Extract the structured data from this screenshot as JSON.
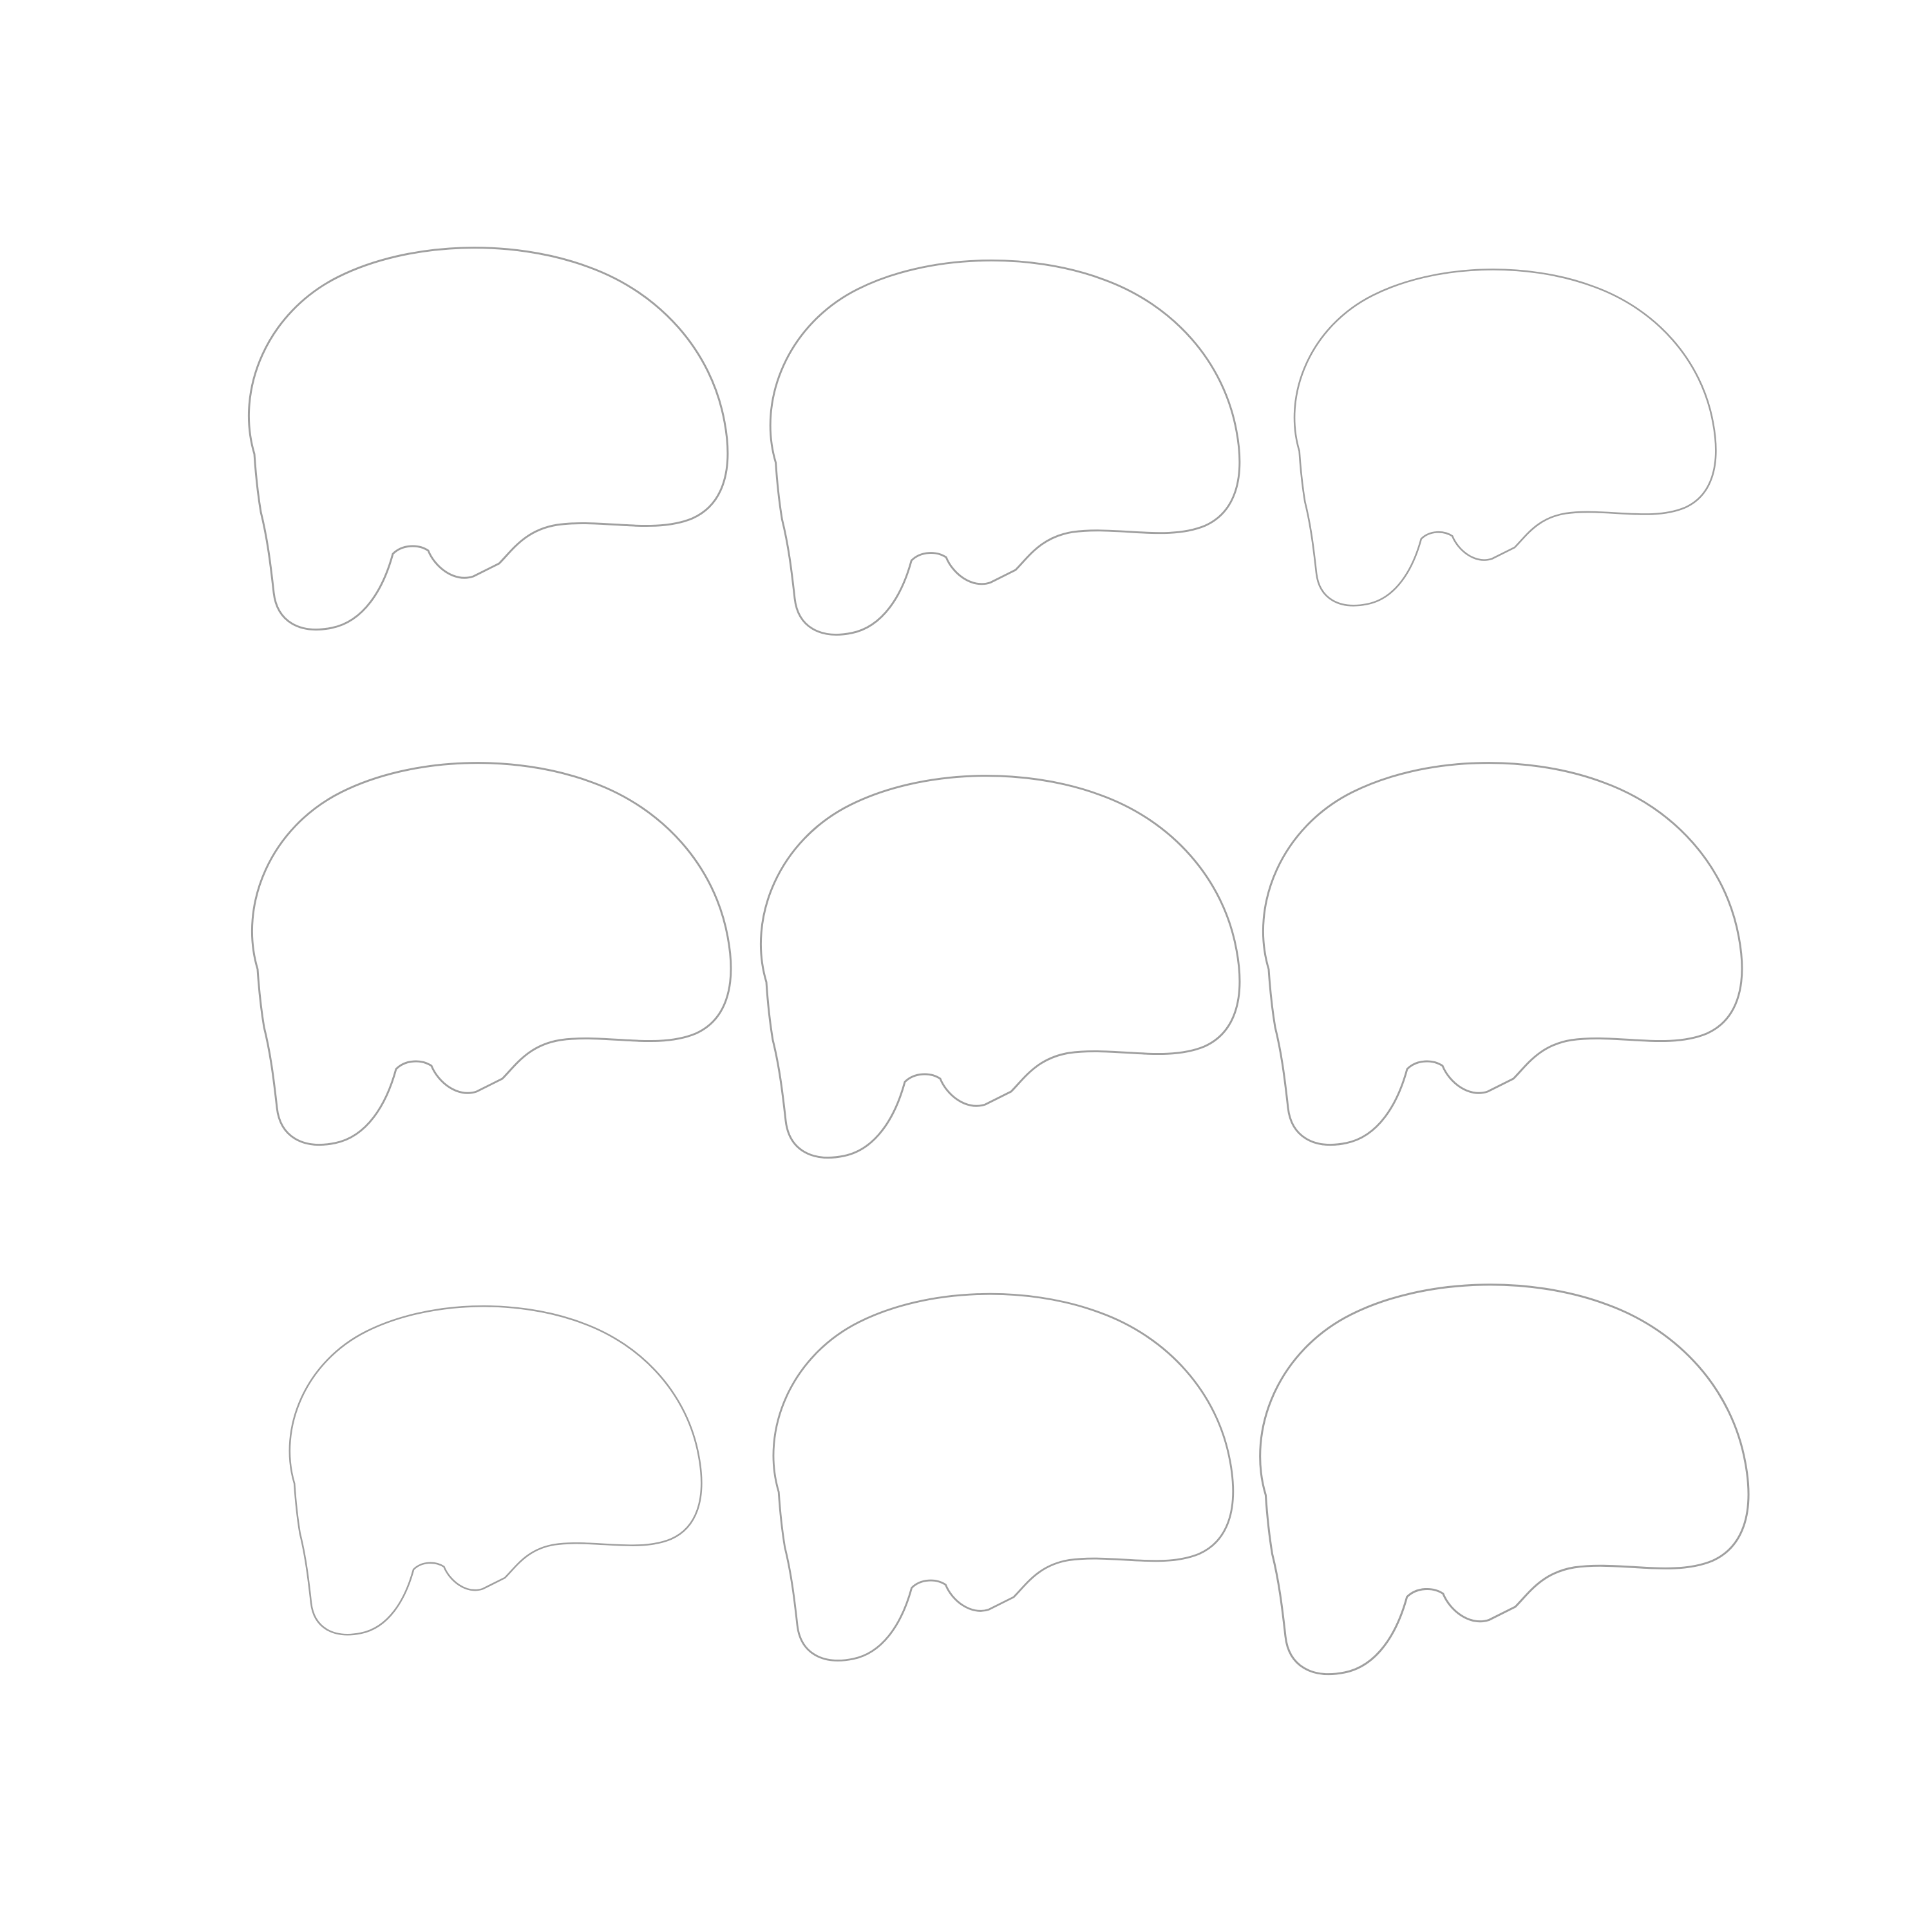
{
  "figure": {
    "view": "sagittal",
    "rows": 3,
    "cols": 3,
    "colormap": {
      "name": "diverging-blue-white-red",
      "negative": "#08519c",
      "neutral": "#f7f7f7",
      "positive": "#b2182b"
    },
    "background_color": "#ffffff",
    "anatomy_color": "#bdbdbd",
    "panels": [
      {
        "id": "r1c1",
        "row": 1,
        "col": 1,
        "overlay": true,
        "hemisphere": "left",
        "position": "lateral"
      },
      {
        "id": "r1c2",
        "row": 1,
        "col": 2,
        "overlay": true,
        "hemisphere": "left",
        "position": "intermediate"
      },
      {
        "id": "r1c3",
        "row": 1,
        "col": 3,
        "overlay": true,
        "hemisphere": "left",
        "position": "far-lateral"
      },
      {
        "id": "r2c1",
        "row": 2,
        "col": 1,
        "overlay": true,
        "hemisphere": "left",
        "position": "medial"
      },
      {
        "id": "r2c2",
        "row": 2,
        "col": 2,
        "overlay": true,
        "hemisphere": "midline",
        "position": "midline"
      },
      {
        "id": "r2c3",
        "row": 2,
        "col": 3,
        "overlay": true,
        "hemisphere": "right",
        "position": "medial"
      },
      {
        "id": "r3c1",
        "row": 3,
        "col": 1,
        "overlay": true,
        "hemisphere": "right",
        "position": "far-lateral"
      },
      {
        "id": "r3c2",
        "row": 3,
        "col": 2,
        "overlay": true,
        "hemisphere": "right",
        "position": "intermediate"
      },
      {
        "id": "r3c3",
        "row": 3,
        "col": 3,
        "overlay": true,
        "hemisphere": "right",
        "position": "lateral"
      }
    ]
  }
}
